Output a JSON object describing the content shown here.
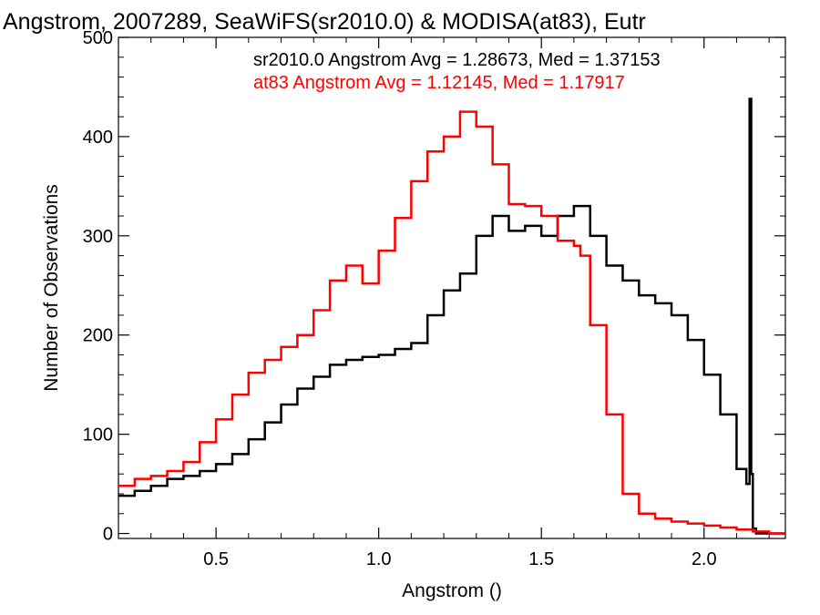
{
  "chart_data": {
    "type": "line",
    "title": "Angstrom, 2007289, SeaWiFS(sr2010.0) & MODISA(at83), Eutr",
    "xlabel": "Angstrom ()",
    "ylabel": "Number of Observations",
    "xlim": [
      0.2,
      2.25
    ],
    "ylim": [
      -5,
      500
    ],
    "xticks": [
      "0.5",
      "1.0",
      "1.5",
      "2.0"
    ],
    "yticks": [
      "0",
      "100",
      "200",
      "300",
      "400",
      "500"
    ],
    "annotations": [
      "sr2010.0 Angstrom Avg = 1.28673, Med = 1.37153",
      "at83 Angstrom Avg = 1.12145, Med = 1.17917"
    ],
    "series": [
      {
        "color": "#000000",
        "style": "step",
        "x": [
          0.2,
          0.25,
          0.3,
          0.35,
          0.4,
          0.45,
          0.5,
          0.55,
          0.6,
          0.65,
          0.7,
          0.75,
          0.8,
          0.85,
          0.9,
          0.95,
          1.0,
          1.05,
          1.1,
          1.15,
          1.2,
          1.25,
          1.3,
          1.35,
          1.4,
          1.45,
          1.5,
          1.55,
          1.6,
          1.65,
          1.7,
          1.75,
          1.8,
          1.85,
          1.9,
          1.95,
          2.0,
          2.05,
          2.1,
          2.13,
          2.14,
          2.145,
          2.15,
          2.16,
          2.2,
          2.25
        ],
        "y": [
          38,
          43,
          48,
          55,
          58,
          63,
          70,
          80,
          95,
          112,
          130,
          146,
          158,
          170,
          175,
          178,
          180,
          186,
          192,
          220,
          245,
          262,
          300,
          320,
          305,
          310,
          300,
          320,
          330,
          300,
          270,
          255,
          240,
          232,
          220,
          195,
          160,
          120,
          65,
          50,
          438,
          60,
          5,
          0,
          0,
          0
        ]
      },
      {
        "color": "#ff0000",
        "style": "step",
        "x": [
          0.2,
          0.25,
          0.3,
          0.35,
          0.4,
          0.45,
          0.5,
          0.55,
          0.6,
          0.65,
          0.7,
          0.75,
          0.8,
          0.85,
          0.9,
          0.95,
          1.0,
          1.05,
          1.1,
          1.15,
          1.2,
          1.25,
          1.3,
          1.35,
          1.4,
          1.45,
          1.5,
          1.55,
          1.6,
          1.62,
          1.65,
          1.7,
          1.75,
          1.8,
          1.85,
          1.9,
          1.95,
          2.0,
          2.05,
          2.1,
          2.15,
          2.2,
          2.25
        ],
        "y": [
          48,
          55,
          58,
          63,
          72,
          92,
          115,
          140,
          162,
          175,
          188,
          200,
          225,
          255,
          270,
          252,
          285,
          318,
          355,
          385,
          400,
          425,
          410,
          372,
          332,
          330,
          320,
          295,
          290,
          280,
          210,
          120,
          40,
          20,
          15,
          12,
          10,
          8,
          6,
          4,
          2,
          0,
          0
        ]
      }
    ]
  }
}
